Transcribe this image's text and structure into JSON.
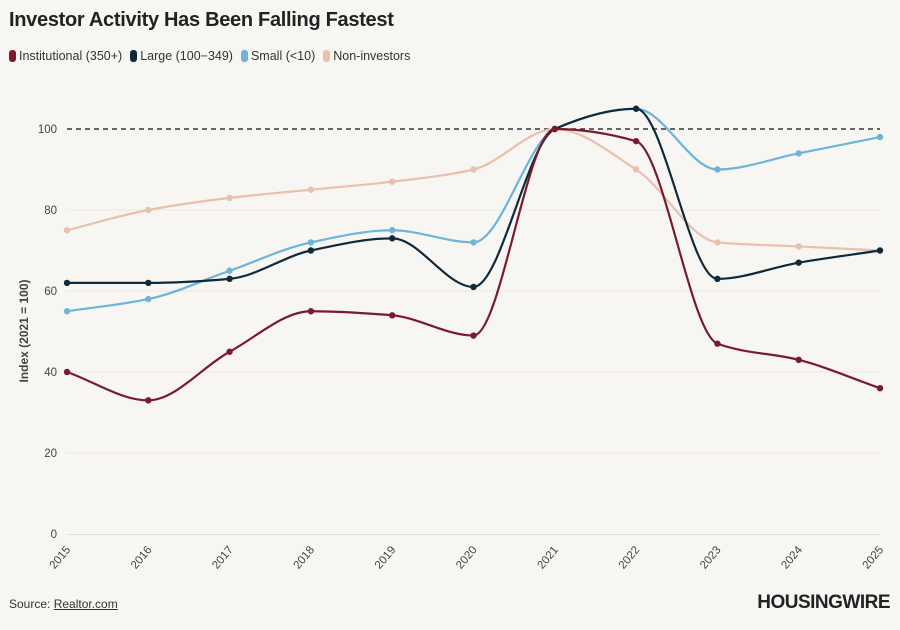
{
  "chart_data": {
    "type": "line",
    "title": "Investor Activity Has Been Falling Fastest",
    "xlabel": "",
    "ylabel": "Index (2021 = 100)",
    "x": [
      "2015",
      "2016",
      "2017",
      "2018",
      "2019",
      "2020",
      "2021",
      "2022",
      "2023",
      "2024",
      "2025"
    ],
    "ylim": [
      0,
      110
    ],
    "yticks": [
      0,
      20,
      40,
      60,
      80,
      100
    ],
    "grid": true,
    "legend_placement": "top-left",
    "reference_line": {
      "value": 100,
      "style": "dashed"
    },
    "series": [
      {
        "name": "Institutional (350+)",
        "color": "#7a1a2e",
        "values": [
          40,
          33,
          45,
          55,
          54,
          49,
          100,
          97,
          47,
          43,
          36
        ]
      },
      {
        "name": "Large (100−349)",
        "color": "#0f2a3a",
        "values": [
          62,
          62,
          63,
          70,
          73,
          61,
          100,
          105,
          63,
          67,
          70
        ]
      },
      {
        "name": "Small (<10)",
        "color": "#6bb5d8",
        "values": [
          55,
          58,
          65,
          72,
          75,
          72,
          100,
          105,
          90,
          94,
          98
        ]
      },
      {
        "name": "Non-investors",
        "color": "#e8c0ad",
        "values": [
          75,
          80,
          83,
          85,
          87,
          90,
          100,
          90,
          72,
          71,
          70
        ]
      }
    ]
  },
  "footer": {
    "source_label": "Source:",
    "source_link": "Realtor.com",
    "logo": "HOUSINGWIRE"
  }
}
